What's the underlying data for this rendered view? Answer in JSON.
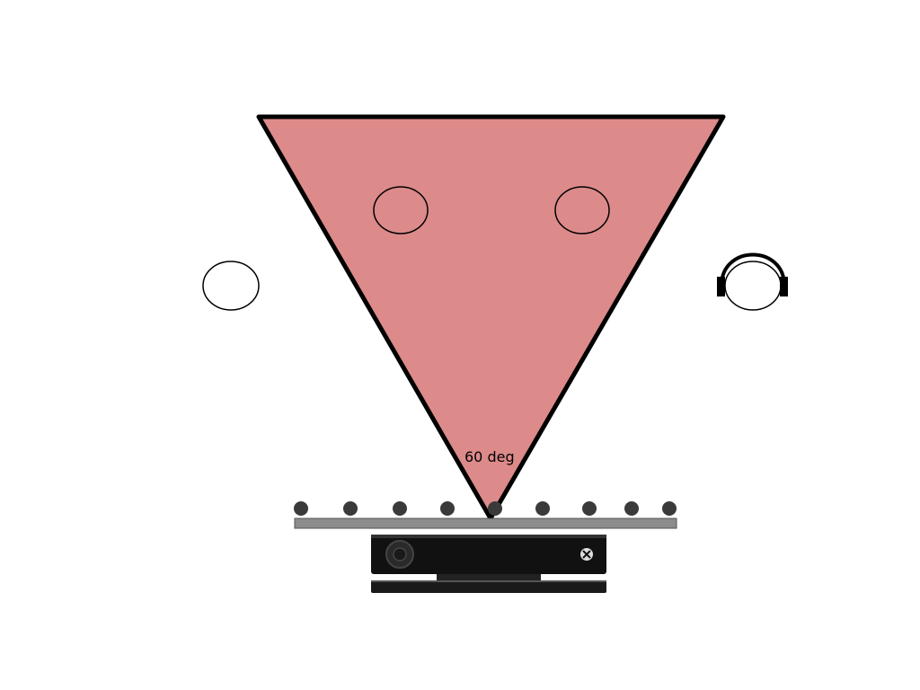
{
  "diagram": {
    "angle_label": "60 deg",
    "people": [
      "person",
      "person",
      "person",
      "person-with-headphones"
    ],
    "microphone_count": 9,
    "device": "kinect-sensor",
    "colors": {
      "field_of_view": "#dd8a8a",
      "outline": "#000000",
      "mic_bar": "#8c8c8c",
      "mic_dot": "#3a3a3a",
      "sensor_body": "#111111"
    }
  }
}
